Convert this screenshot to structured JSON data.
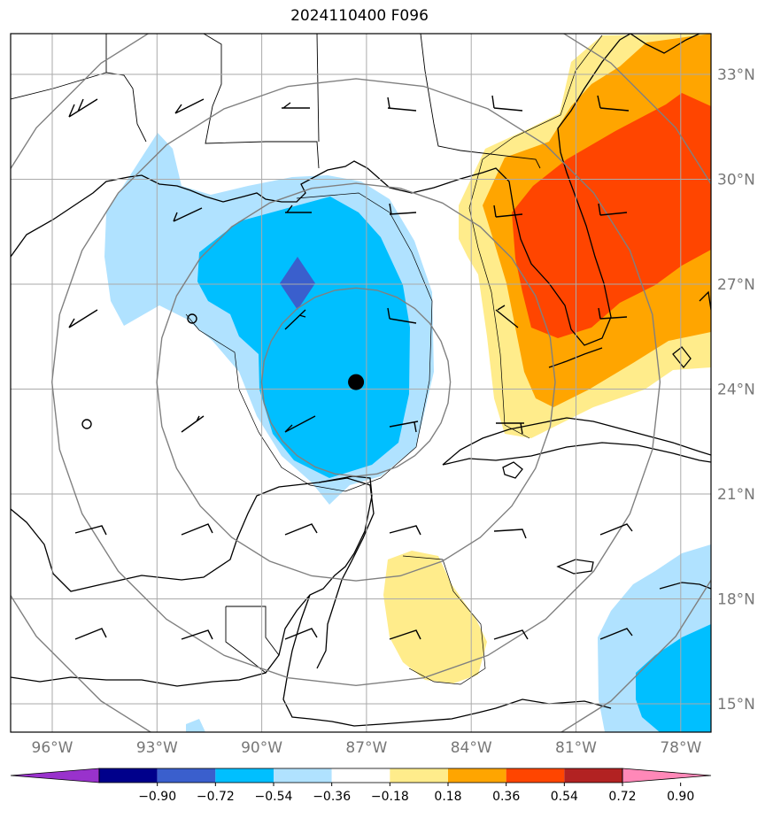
{
  "title": "2024110400 F096",
  "map": {
    "lon_range": [
      -97,
      -77
    ],
    "lat_range": [
      14,
      34
    ],
    "lon_ticks": [
      {
        "value": -96,
        "label": "96°W"
      },
      {
        "value": -93,
        "label": "93°W"
      },
      {
        "value": -90,
        "label": "90°W"
      },
      {
        "value": -87,
        "label": "87°W"
      },
      {
        "value": -84,
        "label": "84°W"
      },
      {
        "value": -81,
        "label": "81°W"
      },
      {
        "value": -78,
        "label": "78°W"
      }
    ],
    "lat_ticks": [
      {
        "value": 33,
        "label": "33°N"
      },
      {
        "value": 30,
        "label": "30°N"
      },
      {
        "value": 27,
        "label": "27°N"
      },
      {
        "value": 24,
        "label": "24°N"
      },
      {
        "value": 21,
        "label": "21°N"
      },
      {
        "value": 18,
        "label": "18°N"
      },
      {
        "value": 15,
        "label": "15°N"
      }
    ],
    "grid": true,
    "center_marker": {
      "lon": -87.3,
      "lat": 24.2
    },
    "range_rings_deg": [
      2.7,
      5.7,
      8.7,
      11.7
    ],
    "ring_color": "#808080"
  },
  "colorbar": {
    "ticks": [
      "−0.90",
      "−0.72",
      "−0.54",
      "−0.36",
      "−0.18",
      "0.18",
      "0.36",
      "0.54",
      "0.72",
      "0.90"
    ],
    "colors": [
      "#9932cc",
      "#00008b",
      "#3a5fcd",
      "#00bfff",
      "#b0e2ff",
      "#ffffff",
      "#ffec8b",
      "#ffa500",
      "#ff4500",
      "#b22222",
      "#ff88b8"
    ],
    "extend": "both"
  },
  "colors": {
    "light_blue": "#b0e2ff",
    "blue": "#00bfff",
    "royal_blue": "#3a5fcd",
    "yellow": "#ffec8b",
    "orange": "#ffa500",
    "red_orange": "#ff4500"
  }
}
